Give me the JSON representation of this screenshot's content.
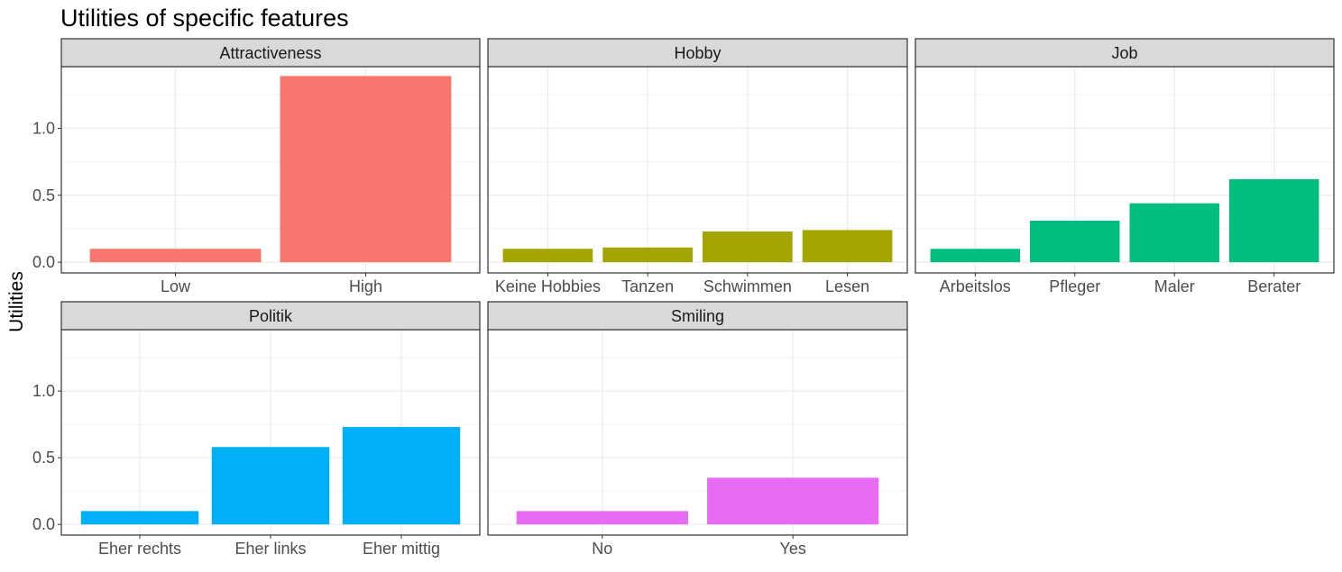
{
  "chart_data": {
    "type": "bar",
    "title": "Utilities of specific features",
    "xlabel": "",
    "ylabel": "Utilities",
    "ylim": [
      -0.08,
      1.46
    ],
    "yticks": [
      0.0,
      0.5,
      1.0
    ],
    "ytick_labels": [
      "0.0",
      "0.5",
      "1.0"
    ],
    "grid": true,
    "legend": "none",
    "facets": [
      {
        "name": "Attractiveness",
        "color": "#F8766D",
        "categories": [
          "Low",
          "High"
        ],
        "values": [
          0.1,
          1.39
        ]
      },
      {
        "name": "Hobby",
        "color": "#A3A500",
        "categories": [
          "Keine Hobbies",
          "Tanzen",
          "Schwimmen",
          "Lesen"
        ],
        "values": [
          0.1,
          0.11,
          0.23,
          0.24
        ]
      },
      {
        "name": "Job",
        "color": "#00BF7D",
        "categories": [
          "Arbeitslos",
          "Pfleger",
          "Maler",
          "Berater"
        ],
        "values": [
          0.1,
          0.31,
          0.44,
          0.62
        ]
      },
      {
        "name": "Politik",
        "color": "#00B0F6",
        "categories": [
          "Eher rechts",
          "Eher links",
          "Eher mittig"
        ],
        "values": [
          0.1,
          0.58,
          0.73
        ]
      },
      {
        "name": "Smiling",
        "color": "#E76BF3",
        "categories": [
          "No",
          "Yes"
        ],
        "values": [
          0.1,
          0.35
        ]
      }
    ]
  }
}
